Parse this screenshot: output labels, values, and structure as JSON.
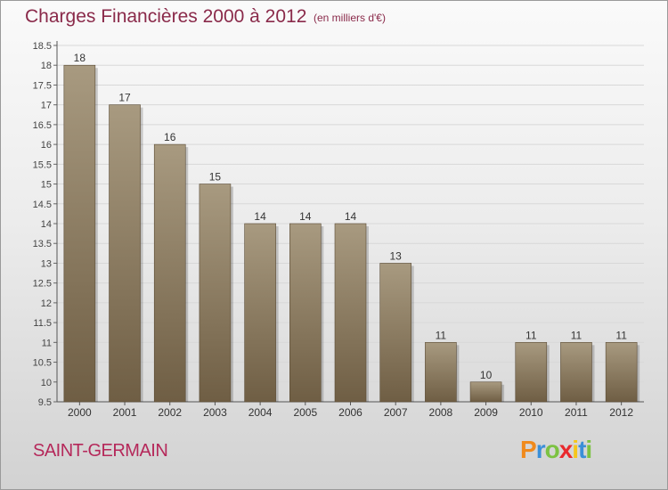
{
  "title": "Charges Financières 2000 à 2012",
  "subtitle": "(en milliers d'€)",
  "commune": "SAINT-GERMAIN",
  "logo": {
    "letters": [
      "P",
      "r",
      "o",
      "x",
      "i",
      "t",
      "i"
    ],
    "colors": [
      "#f08a1c",
      "#3a8fd8",
      "#7cc242",
      "#e9292d",
      "#f6c619",
      "#3a8fd8",
      "#7cc242"
    ]
  },
  "colors": {
    "bar_top": "#a89a80",
    "bar_bottom": "#6f5e44",
    "title": "#8a2a4a"
  },
  "chart_data": {
    "type": "bar",
    "categories": [
      "2000",
      "2001",
      "2002",
      "2003",
      "2004",
      "2005",
      "2006",
      "2007",
      "2008",
      "2009",
      "2010",
      "2011",
      "2012"
    ],
    "values": [
      18,
      17,
      16,
      15,
      14,
      14,
      14,
      13,
      11,
      10,
      11,
      11,
      11
    ],
    "data_labels": [
      "18",
      "17",
      "16",
      "15",
      "14",
      "14",
      "14",
      "13",
      "11",
      "10",
      "11",
      "11",
      "11"
    ],
    "ylim": [
      9.5,
      18.5
    ],
    "yticks": [
      "9.5",
      "10",
      "10.5",
      "11",
      "11.5",
      "12",
      "12.5",
      "13",
      "13.5",
      "14",
      "14.5",
      "15",
      "15.5",
      "16",
      "16.5",
      "17",
      "17.5",
      "18",
      "18.5"
    ],
    "grid": true
  }
}
